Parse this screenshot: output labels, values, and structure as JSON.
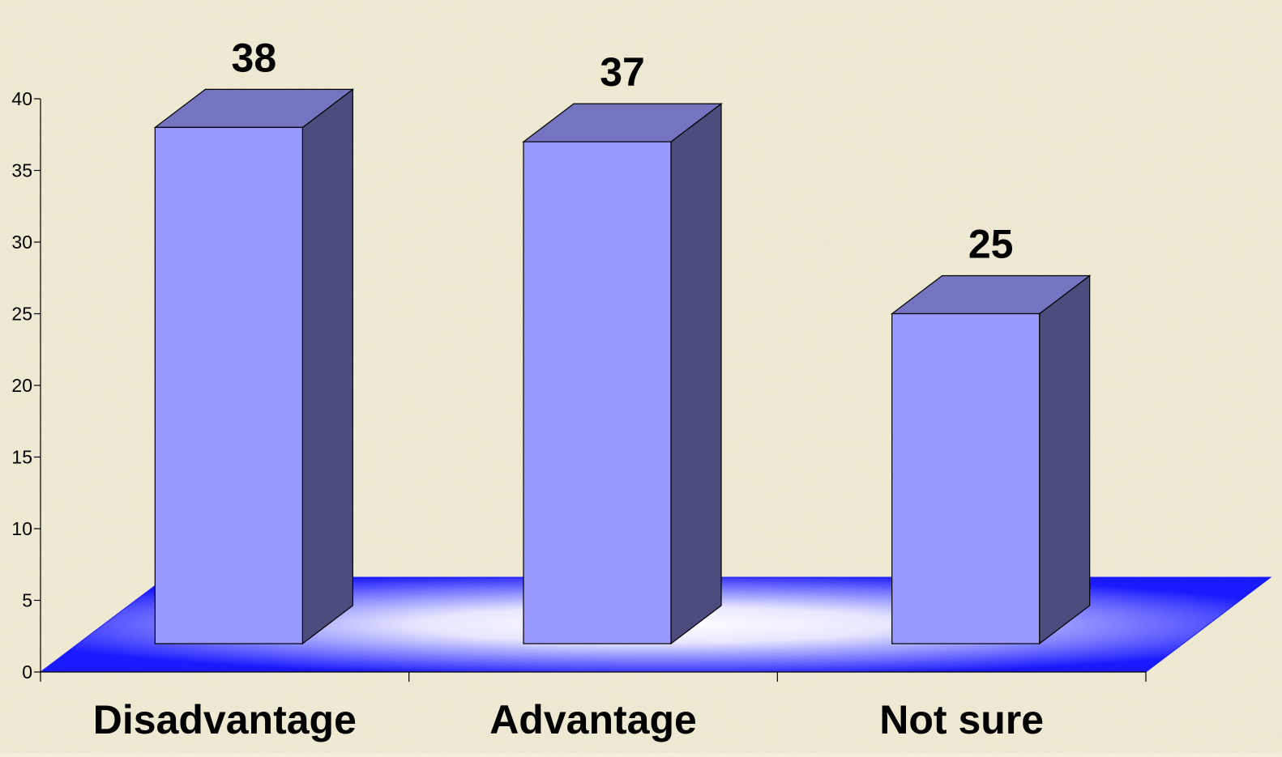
{
  "chart_data": {
    "type": "bar",
    "categories": [
      "Disadvantage",
      "Advantage",
      "Not sure"
    ],
    "values": [
      38,
      37,
      25
    ],
    "ylim": [
      0,
      40
    ],
    "yticks": [
      "0",
      "5",
      "10",
      "15",
      "20",
      "25",
      "30",
      "35",
      "40"
    ],
    "grid": false,
    "legend": "none",
    "colors": {
      "bar_front": "#9999ff",
      "bar_top": "#7474c0",
      "bar_side": "#4c4c7e",
      "floor_edge": "#1a1aff",
      "floor_center": "#ffffff",
      "background": "#f4efd8"
    }
  }
}
